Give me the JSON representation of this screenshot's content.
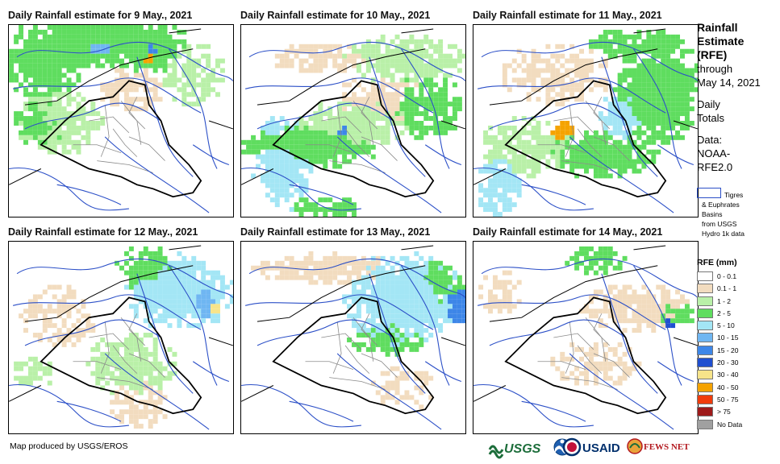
{
  "panels": [
    {
      "title": "Daily Rainfall estimate for 9 May., 2021",
      "date": "9 May., 2021"
    },
    {
      "title": "Daily Rainfall estimate for 10 May., 2021",
      "date": "10 May., 2021"
    },
    {
      "title": "Daily Rainfall estimate for 11 May., 2021",
      "date": "11 May., 2021"
    },
    {
      "title": "Daily Rainfall estimate for 12 May., 2021",
      "date": "12 May., 2021"
    },
    {
      "title": "Daily Rainfall estimate for 13 May., 2021",
      "date": "13 May., 2021"
    },
    {
      "title": "Daily Rainfall estimate for 14 May., 2021",
      "date": "14 May., 2021"
    }
  ],
  "sidebar": {
    "title_lines": [
      "Rainfall",
      "Estimate",
      "(RFE)"
    ],
    "through_label": "through",
    "through_date": "May 14, 2021",
    "totals_lines": [
      "Daily",
      "Totals"
    ],
    "data_lines": [
      "Data:",
      "NOAA-",
      "RFE2.0"
    ]
  },
  "basin_legend": {
    "lines": [
      "Tigres",
      "& Euphrates",
      "Basins",
      "from USGS",
      "Hydro 1k data"
    ],
    "outline_color": "#2b4fc7"
  },
  "rfe_legend": {
    "title": "RFE (mm)",
    "classes": [
      {
        "label": "0 - 0.1",
        "color": "#ffffff"
      },
      {
        "label": "0.1 - 1",
        "color": "#f2dcbf"
      },
      {
        "label": "1 - 2",
        "color": "#b9f0a8"
      },
      {
        "label": "2 - 5",
        "color": "#5fdd5f"
      },
      {
        "label": "5 - 10",
        "color": "#a3e6f5"
      },
      {
        "label": "10 - 15",
        "color": "#6fb6f2"
      },
      {
        "label": "15 - 20",
        "color": "#3d86e8"
      },
      {
        "label": "20 - 30",
        "color": "#1f4fd0"
      },
      {
        "label": "30 - 40",
        "color": "#f7e48a"
      },
      {
        "label": "40 - 50",
        "color": "#f5a300"
      },
      {
        "label": "50 - 75",
        "color": "#f03c0c"
      },
      {
        "label": "> 75",
        "color": "#9e1a1a"
      },
      {
        "label": "No Data",
        "color": "#a0a0a0"
      }
    ]
  },
  "footer": {
    "credit": "Map produced by USGS/EROS"
  },
  "logos": {
    "usgs": "USGS",
    "usaid": "USAID",
    "fews": "FEWS NET"
  }
}
